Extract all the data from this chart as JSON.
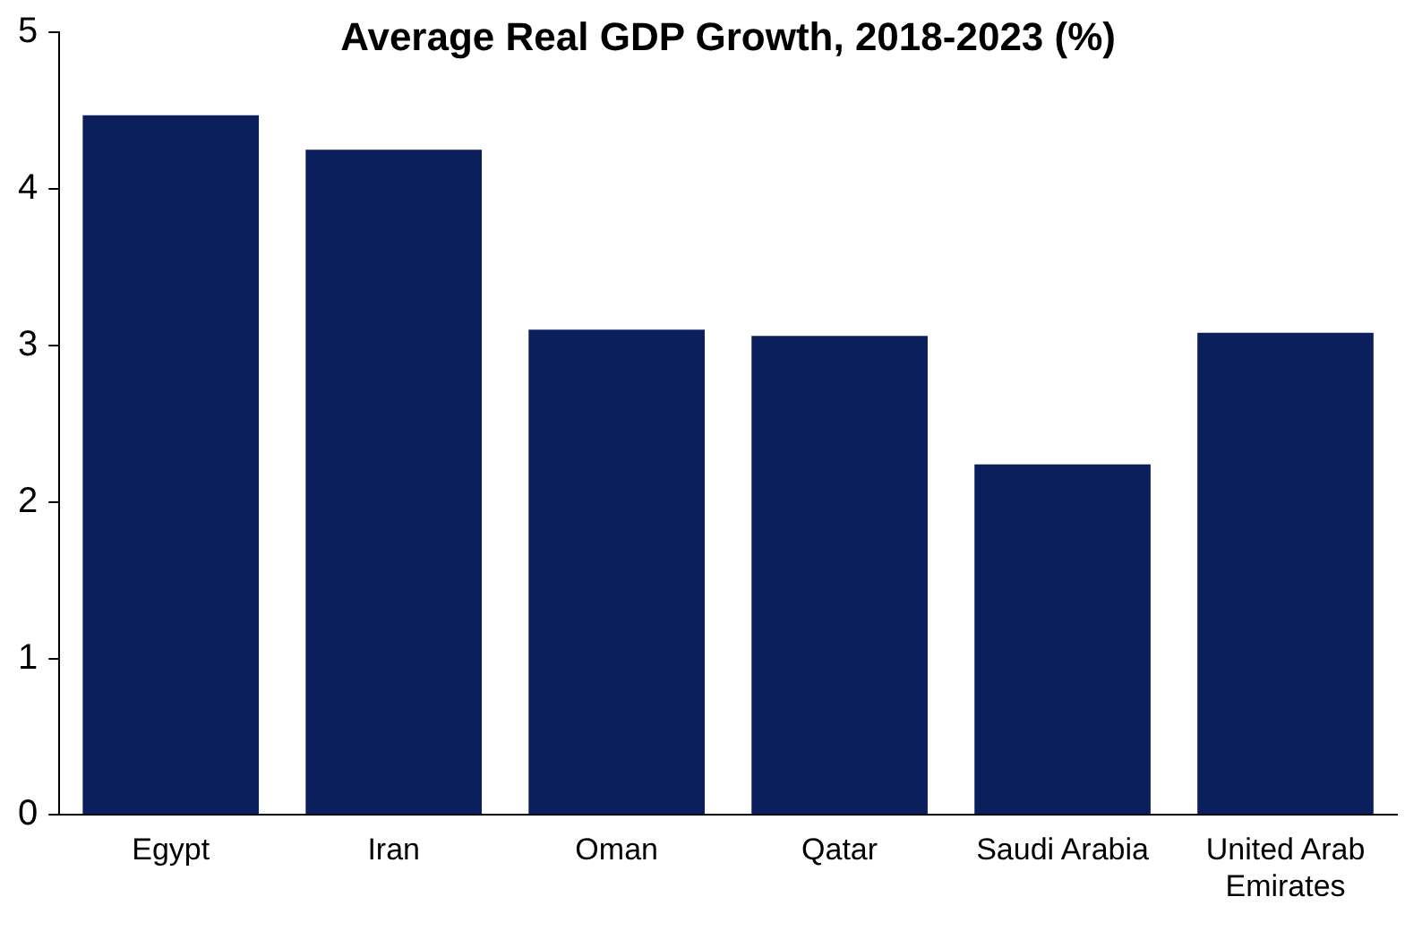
{
  "chart_data": {
    "type": "bar",
    "title": "Average Real GDP Growth, 2018-2023 (%)",
    "categories": [
      "Egypt",
      "Iran",
      "Oman",
      "Qatar",
      "Saudi Arabia",
      "United Arab Emirates"
    ],
    "values": [
      4.47,
      4.25,
      3.1,
      3.06,
      2.24,
      3.08
    ],
    "color": "#0b1f5c",
    "ylim": [
      0,
      5
    ],
    "yticks": [
      0,
      1,
      2,
      3,
      4,
      5
    ],
    "grid": false,
    "legend": false
  }
}
